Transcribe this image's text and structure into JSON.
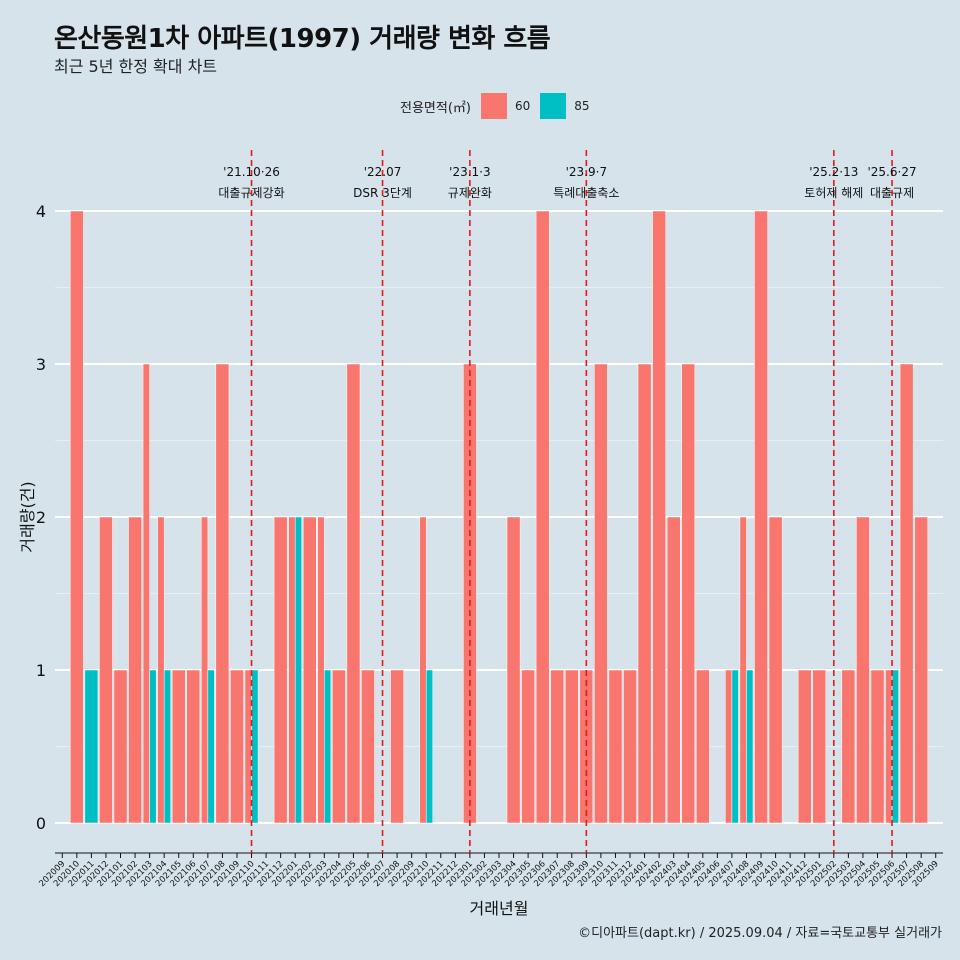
{
  "title": "온산동원1차 아파트(1997) 거래량 변화 흐름",
  "subtitle": "최근 5년 한정 확대 차트",
  "legend_title": "전용면적(㎡)",
  "caption": "©디아파트(dapt.kr) / 2025.09.04 / 자료=국토교통부 실거래가",
  "colors": {
    "background": "#d6e3ea",
    "s60": "#f8766d",
    "s85": "#00bfc4",
    "event_line": "#e31a1c",
    "grid": "#ffffff"
  },
  "chart_data": {
    "type": "bar",
    "title": "온산동원1차 아파트(1997) 거래량 변화 흐름",
    "subtitle": "최근 5년 한정 확대 차트",
    "xlabel": "거래년월",
    "ylabel": "거래량(건)",
    "ylim": [
      0,
      4
    ],
    "yticks": [
      0,
      1,
      2,
      3,
      4
    ],
    "grid": true,
    "legend_position": "top",
    "categories": [
      "202009",
      "202010",
      "202011",
      "202012",
      "202101",
      "202102",
      "202103",
      "202104",
      "202105",
      "202106",
      "202107",
      "202108",
      "202109",
      "202110",
      "202111",
      "202112",
      "202201",
      "202202",
      "202203",
      "202204",
      "202205",
      "202206",
      "202207",
      "202208",
      "202209",
      "202210",
      "202211",
      "202212",
      "202301",
      "202302",
      "202303",
      "202304",
      "202305",
      "202306",
      "202307",
      "202308",
      "202309",
      "202310",
      "202311",
      "202312",
      "202401",
      "202402",
      "202403",
      "202404",
      "202405",
      "202406",
      "202407",
      "202408",
      "202409",
      "202410",
      "202411",
      "202412",
      "202501",
      "202502",
      "202503",
      "202504",
      "202505",
      "202506",
      "202507",
      "202508",
      "202509"
    ],
    "series": [
      {
        "name": "60",
        "values": [
          0,
          4,
          0,
          2,
          1,
          2,
          3,
          2,
          1,
          1,
          2,
          3,
          1,
          1,
          0,
          2,
          2,
          2,
          2,
          1,
          3,
          1,
          0,
          1,
          0,
          2,
          0,
          0,
          3,
          0,
          0,
          2,
          1,
          4,
          1,
          1,
          1,
          3,
          1,
          1,
          3,
          4,
          2,
          3,
          1,
          0,
          1,
          2,
          4,
          2,
          0,
          1,
          1,
          0,
          1,
          2,
          1,
          1,
          3,
          2,
          0
        ]
      },
      {
        "name": "85",
        "values": [
          0,
          0,
          1,
          0,
          0,
          0,
          1,
          1,
          0,
          0,
          1,
          0,
          0,
          1,
          0,
          0,
          2,
          0,
          1,
          0,
          0,
          0,
          0,
          0,
          0,
          1,
          0,
          0,
          0,
          0,
          0,
          0,
          0,
          0,
          0,
          0,
          0,
          0,
          0,
          0,
          0,
          0,
          0,
          0,
          0,
          0,
          1,
          1,
          0,
          0,
          0,
          0,
          0,
          0,
          0,
          0,
          0,
          1,
          0,
          0,
          0
        ]
      }
    ],
    "events": [
      {
        "date": "202110",
        "line1": "'21.10·26",
        "line2": "대출규제강화"
      },
      {
        "date": "202207",
        "line1": "'22.07",
        "line2": "DSR 3단계"
      },
      {
        "date": "202301",
        "line1": "'23.1·3",
        "line2": "규제완화"
      },
      {
        "date": "202309",
        "line1": "'23.9·7",
        "line2": "특례대출축소"
      },
      {
        "date": "202502",
        "line1": "'25.2·13",
        "line2": "토허제 해제"
      },
      {
        "date": "202506",
        "line1": "'25.6·27",
        "line2": "대출규제"
      }
    ]
  }
}
